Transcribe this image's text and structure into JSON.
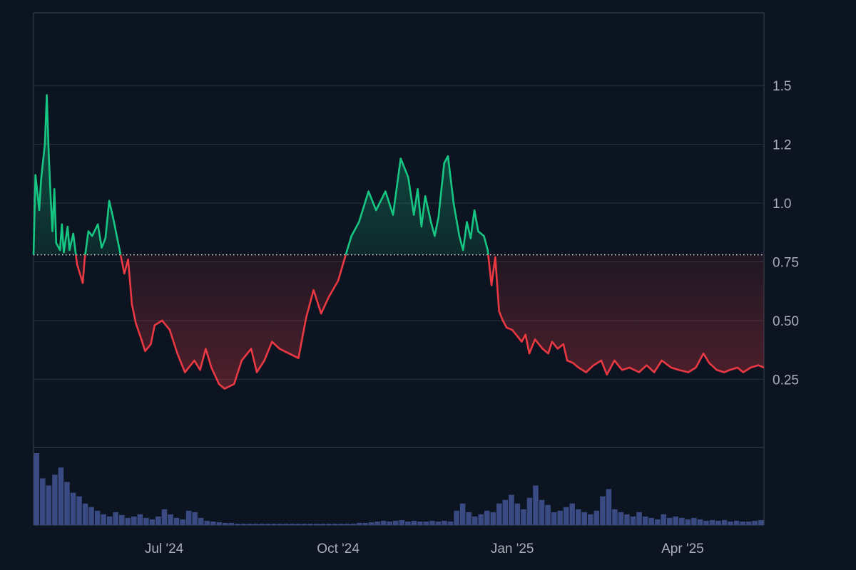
{
  "colors": {
    "background": "#0d1421",
    "grid": "#2a3240",
    "axis_border": "#3a4250",
    "tick_text": "#a8aeb8",
    "up": "#16c784",
    "down": "#ea3943",
    "baseline_dots": "#e6e6e6",
    "volume": "#3a4a82"
  },
  "chart_data": {
    "type": "area",
    "title": "",
    "xlabel": "",
    "ylabel": "",
    "baseline": 0.78,
    "ylim": [
      -0.04,
      1.81
    ],
    "yticks": [
      {
        "value": 0.25,
        "label": "0.25"
      },
      {
        "value": 0.5,
        "label": "0.50"
      },
      {
        "value": 0.75,
        "label": "0.75"
      },
      {
        "value": 1.0,
        "label": "1.0"
      },
      {
        "value": 1.25,
        "label": "1.2"
      },
      {
        "value": 1.5,
        "label": "1.5"
      }
    ],
    "x_range": [
      "2024-04-23",
      "2025-05-14"
    ],
    "xticks": [
      {
        "date": "2024-07-01",
        "label": "Jul '24"
      },
      {
        "date": "2024-10-01",
        "label": "Oct '24"
      },
      {
        "date": "2025-01-01",
        "label": "Jan '25"
      },
      {
        "date": "2025-04-01",
        "label": "Apr '25"
      }
    ],
    "price": {
      "dates": [
        "2024-04-23",
        "2024-04-24",
        "2024-04-26",
        "2024-04-27",
        "2024-04-29",
        "2024-04-30",
        "2024-05-01",
        "2024-05-02",
        "2024-05-03",
        "2024-05-04",
        "2024-05-05",
        "2024-05-07",
        "2024-05-08",
        "2024-05-09",
        "2024-05-11",
        "2024-05-12",
        "2024-05-14",
        "2024-05-16",
        "2024-05-19",
        "2024-05-20",
        "2024-05-22",
        "2024-05-24",
        "2024-05-27",
        "2024-05-29",
        "2024-05-31",
        "2024-06-02",
        "2024-06-04",
        "2024-06-07",
        "2024-06-09",
        "2024-06-10",
        "2024-06-12",
        "2024-06-14",
        "2024-06-16",
        "2024-06-19",
        "2024-06-21",
        "2024-06-24",
        "2024-06-26",
        "2024-06-30",
        "2024-07-04",
        "2024-07-08",
        "2024-07-12",
        "2024-07-17",
        "2024-07-20",
        "2024-07-23",
        "2024-07-26",
        "2024-07-30",
        "2024-08-02",
        "2024-08-07",
        "2024-08-11",
        "2024-08-16",
        "2024-08-19",
        "2024-08-23",
        "2024-08-27",
        "2024-08-31",
        "2024-09-05",
        "2024-09-10",
        "2024-09-14",
        "2024-09-18",
        "2024-09-22",
        "2024-09-26",
        "2024-10-01",
        "2024-10-05",
        "2024-10-08",
        "2024-10-12",
        "2024-10-17",
        "2024-10-21",
        "2024-10-26",
        "2024-10-30",
        "2024-11-03",
        "2024-11-07",
        "2024-11-10",
        "2024-11-12",
        "2024-11-14",
        "2024-11-16",
        "2024-11-19",
        "2024-11-21",
        "2024-11-23",
        "2024-11-26",
        "2024-11-28",
        "2024-12-01",
        "2024-12-04",
        "2024-12-06",
        "2024-12-08",
        "2024-12-10",
        "2024-12-12",
        "2024-12-14",
        "2024-12-17",
        "2024-12-19",
        "2024-12-21",
        "2024-12-23",
        "2024-12-25",
        "2024-12-27",
        "2024-12-29",
        "2025-01-01",
        "2025-01-03",
        "2025-01-06",
        "2025-01-08",
        "2025-01-10",
        "2025-01-13",
        "2025-01-15",
        "2025-01-17",
        "2025-01-20",
        "2025-01-22",
        "2025-01-25",
        "2025-01-28",
        "2025-01-30",
        "2025-02-02",
        "2025-02-05",
        "2025-02-09",
        "2025-02-13",
        "2025-02-17",
        "2025-02-20",
        "2025-02-24",
        "2025-02-28",
        "2025-03-04",
        "2025-03-09",
        "2025-03-13",
        "2025-03-17",
        "2025-03-21",
        "2025-03-26",
        "2025-03-30",
        "2025-04-04",
        "2025-04-08",
        "2025-04-12",
        "2025-04-15",
        "2025-04-19",
        "2025-04-23",
        "2025-04-26",
        "2025-04-30",
        "2025-05-03",
        "2025-05-07",
        "2025-05-11",
        "2025-05-14"
      ],
      "values": [
        0.78,
        1.12,
        0.97,
        1.1,
        1.25,
        1.46,
        1.22,
        1.03,
        0.88,
        1.06,
        0.83,
        0.8,
        0.91,
        0.79,
        0.9,
        0.8,
        0.87,
        0.74,
        0.66,
        0.76,
        0.88,
        0.86,
        0.91,
        0.81,
        0.85,
        1.01,
        0.94,
        0.82,
        0.74,
        0.7,
        0.76,
        0.57,
        0.49,
        0.42,
        0.37,
        0.4,
        0.48,
        0.5,
        0.46,
        0.36,
        0.28,
        0.33,
        0.29,
        0.38,
        0.3,
        0.23,
        0.21,
        0.23,
        0.33,
        0.38,
        0.28,
        0.33,
        0.41,
        0.38,
        0.36,
        0.34,
        0.51,
        0.63,
        0.53,
        0.6,
        0.67,
        0.78,
        0.86,
        0.92,
        1.05,
        0.97,
        1.05,
        0.95,
        1.19,
        1.11,
        0.95,
        1.06,
        0.9,
        1.03,
        0.92,
        0.86,
        0.94,
        1.17,
        1.2,
        1.0,
        0.86,
        0.8,
        0.92,
        0.85,
        0.97,
        0.88,
        0.86,
        0.8,
        0.65,
        0.77,
        0.54,
        0.5,
        0.47,
        0.46,
        0.44,
        0.41,
        0.44,
        0.36,
        0.42,
        0.4,
        0.38,
        0.36,
        0.41,
        0.38,
        0.4,
        0.33,
        0.32,
        0.3,
        0.28,
        0.31,
        0.33,
        0.27,
        0.33,
        0.29,
        0.3,
        0.28,
        0.31,
        0.28,
        0.33,
        0.3,
        0.29,
        0.28,
        0.3,
        0.36,
        0.32,
        0.29,
        0.28,
        0.29,
        0.3,
        0.28,
        0.3,
        0.31,
        0.3
      ]
    },
    "volume": {
      "note": "relative heights (0-1) of the volume bars along the same date range",
      "bins": 120,
      "values": [
        1.0,
        0.65,
        0.55,
        0.7,
        0.8,
        0.6,
        0.45,
        0.4,
        0.3,
        0.25,
        0.2,
        0.15,
        0.12,
        0.18,
        0.14,
        0.1,
        0.12,
        0.15,
        0.1,
        0.08,
        0.12,
        0.22,
        0.15,
        0.1,
        0.08,
        0.2,
        0.18,
        0.1,
        0.06,
        0.05,
        0.04,
        0.03,
        0.03,
        0.02,
        0.02,
        0.02,
        0.02,
        0.02,
        0.02,
        0.02,
        0.02,
        0.02,
        0.02,
        0.02,
        0.02,
        0.02,
        0.02,
        0.02,
        0.02,
        0.02,
        0.02,
        0.02,
        0.02,
        0.03,
        0.03,
        0.04,
        0.05,
        0.06,
        0.05,
        0.06,
        0.07,
        0.05,
        0.06,
        0.05,
        0.05,
        0.06,
        0.05,
        0.06,
        0.05,
        0.2,
        0.3,
        0.18,
        0.12,
        0.15,
        0.2,
        0.18,
        0.3,
        0.35,
        0.42,
        0.3,
        0.22,
        0.38,
        0.55,
        0.35,
        0.28,
        0.18,
        0.2,
        0.25,
        0.3,
        0.22,
        0.18,
        0.15,
        0.2,
        0.4,
        0.5,
        0.22,
        0.18,
        0.15,
        0.12,
        0.18,
        0.12,
        0.1,
        0.08,
        0.15,
        0.1,
        0.12,
        0.1,
        0.08,
        0.1,
        0.08,
        0.06,
        0.07,
        0.06,
        0.07,
        0.05,
        0.06,
        0.05,
        0.05,
        0.06,
        0.07
      ]
    }
  }
}
